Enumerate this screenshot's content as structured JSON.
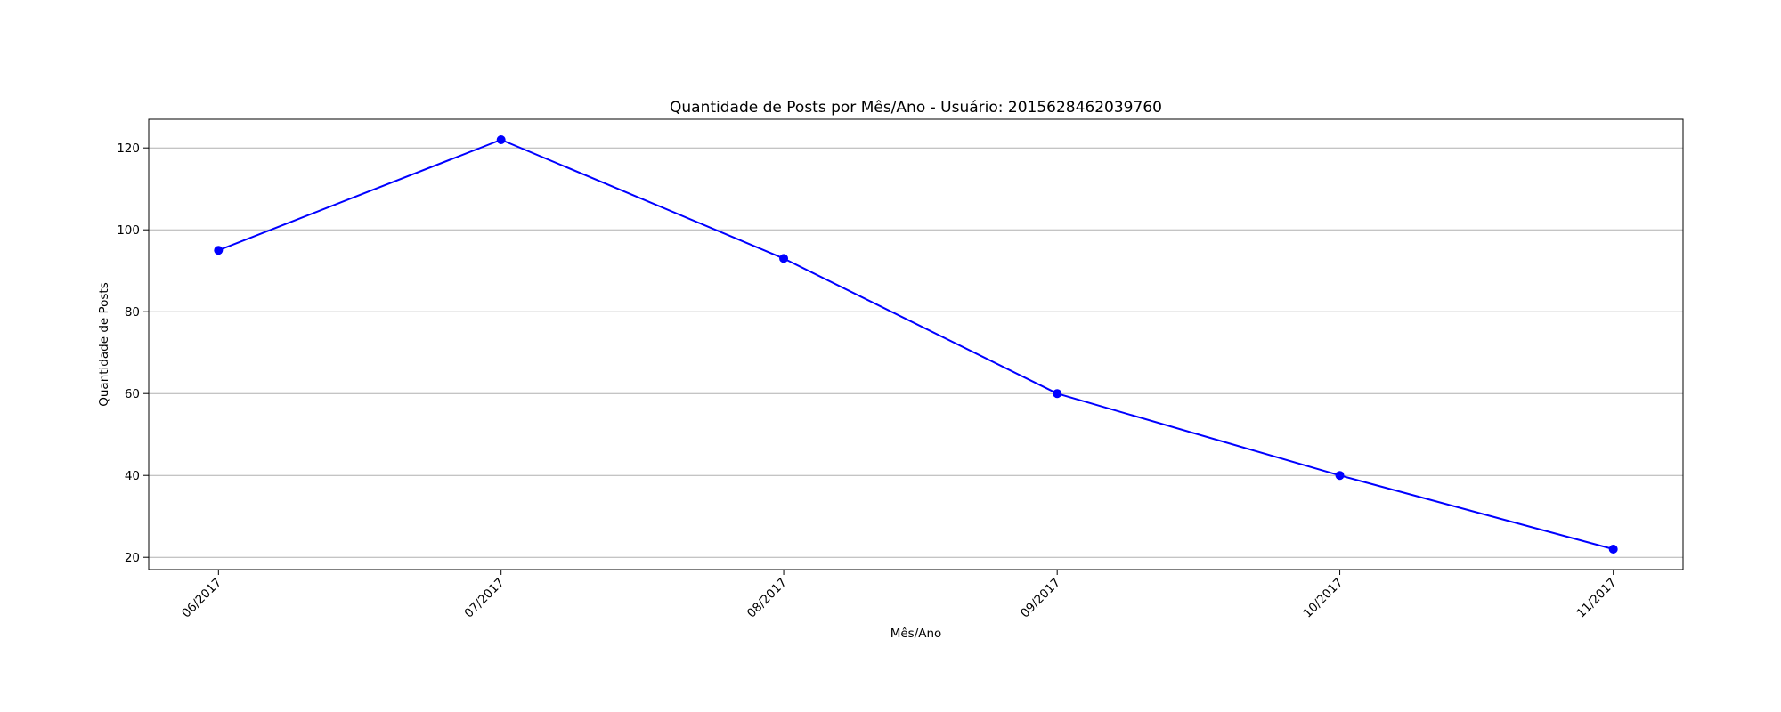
{
  "chart_data": {
    "type": "line",
    "title": "Quantidade de Posts por Mês/Ano - Usuário: 2015628462039760",
    "xlabel": "Mês/Ano",
    "ylabel": "Quantidade de Posts",
    "categories": [
      "06/2017",
      "07/2017",
      "08/2017",
      "09/2017",
      "10/2017",
      "11/2017"
    ],
    "x_dates": [
      "2017-06-30",
      "2017-07-31",
      "2017-08-31",
      "2017-09-30",
      "2017-10-31",
      "2017-11-30"
    ],
    "series": [
      {
        "values": [
          95,
          122,
          93,
          60,
          40,
          22
        ],
        "color": "#0000ff",
        "marker": "circle"
      }
    ],
    "yticks": [
      20,
      40,
      60,
      80,
      100,
      120
    ],
    "ylim": [
      17,
      127
    ],
    "grid": "y-axis only",
    "legend": "none"
  }
}
